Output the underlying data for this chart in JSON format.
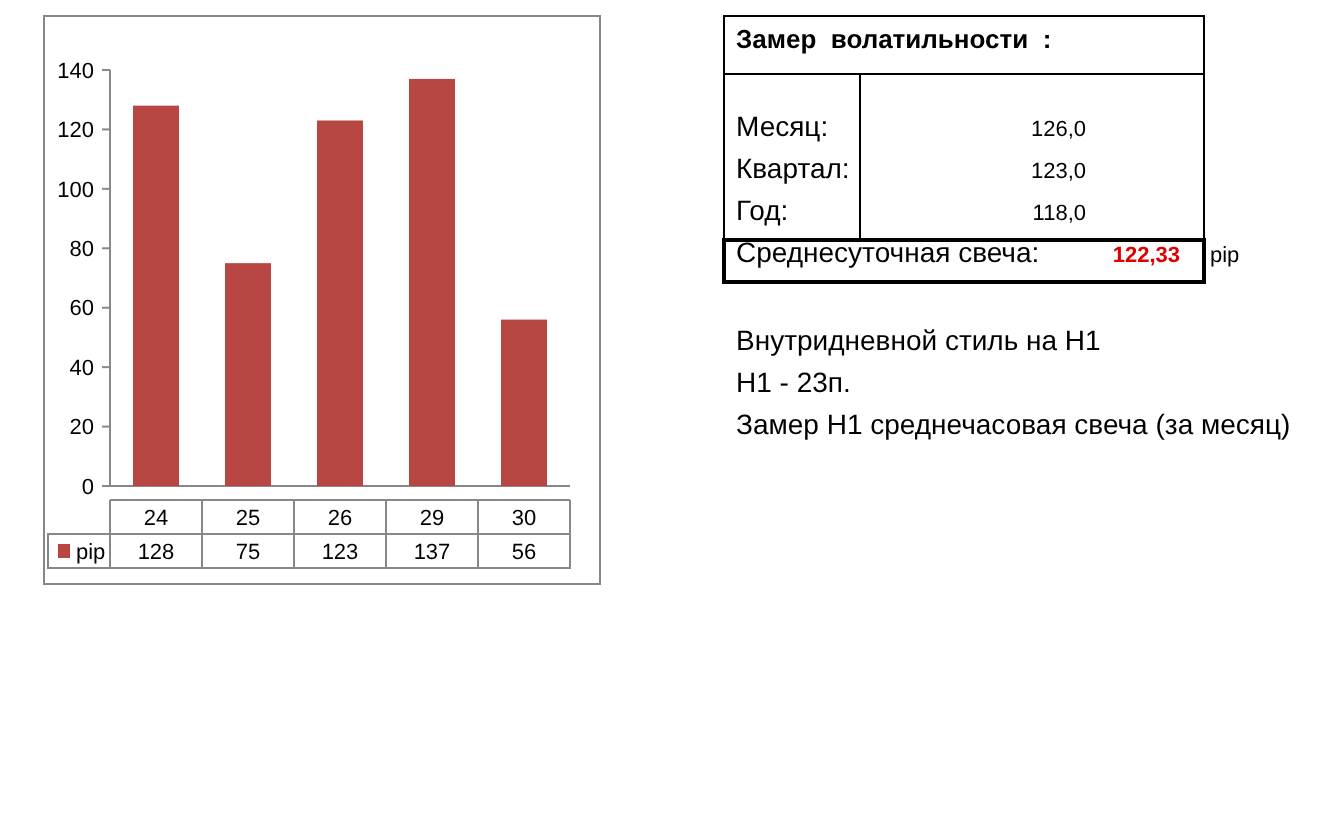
{
  "chart_data": {
    "type": "bar",
    "categories": [
      "24",
      "25",
      "26",
      "29",
      "30"
    ],
    "series": [
      {
        "name": "pip",
        "color": "#b84744",
        "values": [
          128,
          75,
          123,
          137,
          56
        ]
      }
    ],
    "ylim": [
      0,
      140
    ],
    "yticks": [
      0,
      20,
      40,
      60,
      80,
      100,
      120,
      140
    ],
    "grid": false,
    "legend": "bottom",
    "data_labels": true,
    "annotations": [
      "Замер  волатильности  :",
      "Месяц:",
      "126,0",
      "Квартал:",
      "123,0",
      "Год:",
      "118,0",
      "Среднесуточная свеча:",
      "122,33",
      "pip",
      "Внутридневной стиль на H1",
      "H1 - 23п.",
      "Замер H1 среднечасовая свеча (за месяц)"
    ]
  }
}
